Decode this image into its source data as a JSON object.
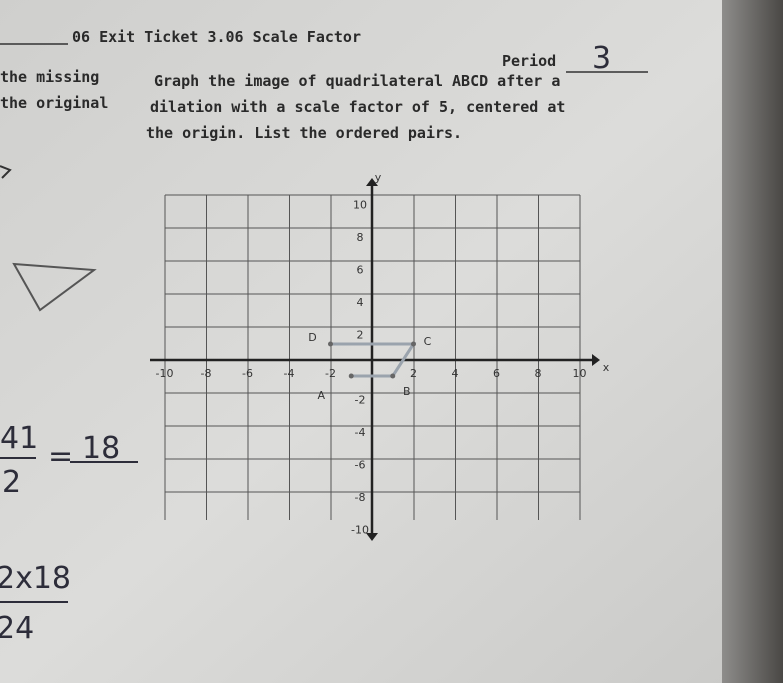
{
  "header": {
    "title": "06 Exit Ticket 3.06 Scale Factor",
    "period_label": "Period",
    "period_value": "3"
  },
  "left_margin": [
    "the missing",
    "the original"
  ],
  "instructions": [
    "Graph the image of quadrilateral ABCD after a",
    "dilation with a scale factor of 5, centered at",
    "the origin. List the ordered pairs."
  ],
  "graph": {
    "x_label": "x",
    "y_label": "y",
    "x_ticks": [
      "-10",
      "-8",
      "-6",
      "-4",
      "-2",
      "2",
      "4",
      "6",
      "8",
      "10"
    ],
    "y_ticks": [
      "10",
      "8",
      "6",
      "4",
      "2",
      "-2",
      "-4",
      "-6",
      "-8",
      "-10"
    ],
    "points": [
      "D",
      "C",
      "A",
      "B"
    ]
  },
  "handwriting": {
    "fraction_top": "41",
    "fraction_bottom": "2",
    "equals": "=",
    "answer": "18",
    "work_top": "2x18",
    "work_bottom": "24"
  }
}
